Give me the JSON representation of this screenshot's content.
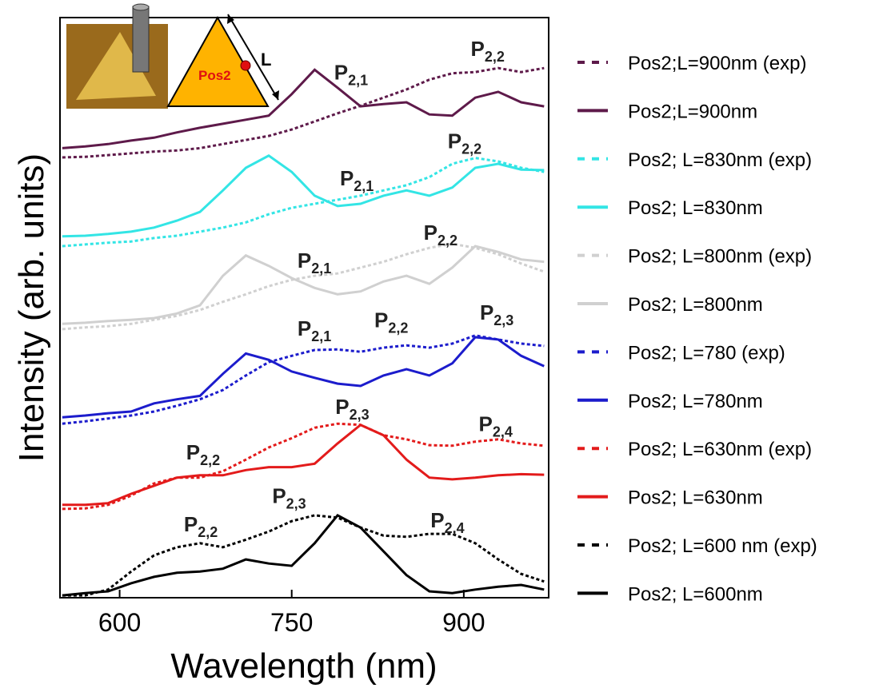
{
  "chart_data": {
    "type": "line",
    "x_label": "Wavelength (nm)",
    "y_label": "Intensity (arb. units)",
    "x": [
      550,
      570,
      590,
      610,
      630,
      650,
      670,
      690,
      710,
      730,
      750,
      770,
      790,
      810,
      830,
      850,
      870,
      890,
      910,
      930,
      950,
      970
    ],
    "xlim": [
      548,
      974
    ],
    "xticks": [
      600,
      750,
      900
    ],
    "ylim": [
      0,
      100
    ],
    "legend": "right",
    "series": [
      {
        "name": "Pos2;L=900nm (exp)",
        "color": "#5e1a4a",
        "dashed": true,
        "values": [
          75.9,
          76.0,
          76.3,
          76.6,
          76.9,
          77.1,
          77.5,
          78.2,
          78.9,
          79.6,
          80.7,
          82.1,
          83.5,
          84.8,
          86.2,
          87.6,
          89.3,
          90.4,
          90.6,
          91.3,
          90.6,
          91.3
        ]
      },
      {
        "name": "Pos2;L=900nm",
        "color": "#5e1a4a",
        "dashed": false,
        "values": [
          77.5,
          77.8,
          78.2,
          78.8,
          79.3,
          80.2,
          81.0,
          81.7,
          82.4,
          83.1,
          86.8,
          91.0,
          87.9,
          84.7,
          85.1,
          85.4,
          83.3,
          83.1,
          86.2,
          87.2,
          85.4,
          84.7
        ]
      },
      {
        "name": "Pos2; L=830nm (exp)",
        "color": "#33e5e5",
        "dashed": true,
        "values": [
          60.6,
          60.9,
          61.2,
          61.4,
          62.0,
          62.4,
          63.1,
          63.8,
          64.7,
          66.1,
          67.2,
          67.9,
          68.6,
          69.3,
          70.2,
          71.1,
          72.5,
          74.8,
          75.8,
          75.2,
          74.1,
          73.4
        ]
      },
      {
        "name": "Pos2; L=830nm",
        "color": "#33e5e5",
        "dashed": false,
        "values": [
          62.3,
          62.4,
          62.7,
          63.1,
          63.8,
          65.0,
          66.5,
          70.2,
          74.1,
          76.2,
          73.4,
          69.3,
          67.5,
          67.9,
          69.3,
          70.2,
          69.3,
          70.7,
          74.1,
          74.8,
          73.8,
          73.7
        ]
      },
      {
        "name": "Pos2; L=800nm (exp)",
        "color": "#d0d0d0",
        "dashed": true,
        "values": [
          46.3,
          46.6,
          46.8,
          47.2,
          47.9,
          48.6,
          49.6,
          51.0,
          52.3,
          53.7,
          54.8,
          55.5,
          55.9,
          56.9,
          57.9,
          59.2,
          60.3,
          61.0,
          60.3,
          59.2,
          57.6,
          56.2
        ]
      },
      {
        "name": "Pos2; L=800nm",
        "color": "#d0d0d0",
        "dashed": false,
        "values": [
          47.2,
          47.4,
          47.7,
          47.9,
          48.2,
          49.0,
          50.4,
          55.5,
          59.0,
          57.2,
          55.1,
          53.4,
          52.3,
          52.8,
          54.5,
          55.5,
          54.1,
          56.9,
          60.6,
          59.6,
          58.3,
          57.9
        ]
      },
      {
        "name": "Pos2; L=780 (exp)",
        "color": "#1c1ccc",
        "dashed": true,
        "values": [
          30.0,
          30.4,
          30.9,
          31.4,
          32.1,
          33.1,
          34.2,
          35.8,
          38.3,
          40.6,
          41.7,
          42.7,
          42.8,
          42.4,
          43.1,
          43.5,
          43.1,
          43.8,
          45.2,
          44.5,
          43.8,
          43.4
        ]
      },
      {
        "name": "Pos2; L=780nm",
        "color": "#1c1ccc",
        "dashed": false,
        "values": [
          31.1,
          31.4,
          31.8,
          32.1,
          33.5,
          34.2,
          34.8,
          38.6,
          42.1,
          41.0,
          39.0,
          37.9,
          36.9,
          36.5,
          38.3,
          39.4,
          38.3,
          40.4,
          44.9,
          44.5,
          41.7,
          39.9
        ]
      },
      {
        "name": "Pos2; L=630nm (exp)",
        "color": "#e31b1b",
        "dashed": true,
        "values": [
          15.3,
          15.4,
          16.0,
          17.6,
          19.7,
          20.7,
          20.7,
          21.8,
          23.8,
          25.9,
          27.5,
          29.3,
          30.0,
          29.8,
          28.0,
          27.3,
          26.3,
          26.2,
          26.9,
          27.3,
          26.6,
          26.2
        ]
      },
      {
        "name": "Pos2; L=630nm",
        "color": "#e31b1b",
        "dashed": false,
        "values": [
          16.0,
          16.0,
          16.3,
          17.9,
          19.3,
          20.7,
          21.1,
          21.1,
          22.0,
          22.5,
          22.5,
          23.1,
          26.6,
          29.8,
          28.0,
          23.8,
          20.7,
          20.4,
          20.7,
          21.1,
          21.3,
          21.2
        ]
      },
      {
        "name": "Pos2; L=600 nm (exp)",
        "color": "#000000",
        "dashed": true,
        "values": [
          0.4,
          0.4,
          1.4,
          4.5,
          7.3,
          8.7,
          9.4,
          8.7,
          10.0,
          11.4,
          13.2,
          14.2,
          13.8,
          12.1,
          10.7,
          10.5,
          11.0,
          11.0,
          9.4,
          6.6,
          4.1,
          2.8
        ]
      },
      {
        "name": "Pos2; L=600nm",
        "color": "#000000",
        "dashed": false,
        "values": [
          0.4,
          0.8,
          1.1,
          2.5,
          3.6,
          4.3,
          4.5,
          5.0,
          6.6,
          5.9,
          5.5,
          9.4,
          14.2,
          12.1,
          8.0,
          3.9,
          1.1,
          0.8,
          1.4,
          1.9,
          2.2,
          1.4
        ]
      }
    ],
    "annotations": [
      {
        "text": "P",
        "sub": "2,1",
        "x": 787,
        "y": 89.3
      },
      {
        "text": "P",
        "sub": "2,2",
        "x": 906,
        "y": 93.4
      },
      {
        "text": "P",
        "sub": "2,2",
        "x": 886,
        "y": 77.5
      },
      {
        "text": "P",
        "sub": "2,1",
        "x": 792,
        "y": 71.1
      },
      {
        "text": "P",
        "sub": "2,2",
        "x": 865,
        "y": 61.7
      },
      {
        "text": "P",
        "sub": "2,1",
        "x": 755,
        "y": 56.9
      },
      {
        "text": "P",
        "sub": "2,1",
        "x": 755,
        "y": 45.2
      },
      {
        "text": "P",
        "sub": "2,2",
        "x": 822,
        "y": 46.6
      },
      {
        "text": "P",
        "sub": "2,3",
        "x": 914,
        "y": 47.9
      },
      {
        "text": "P",
        "sub": "2,3",
        "x": 788,
        "y": 31.7
      },
      {
        "text": "P",
        "sub": "2,4",
        "x": 913,
        "y": 28.7
      },
      {
        "text": "P",
        "sub": "2,2",
        "x": 658,
        "y": 23.8
      },
      {
        "text": "P",
        "sub": "2,2",
        "x": 656,
        "y": 11.4
      },
      {
        "text": "P",
        "sub": "2,3",
        "x": 733,
        "y": 16.3
      },
      {
        "text": "P",
        "sub": "2,4",
        "x": 871,
        "y": 12.1
      }
    ]
  },
  "inset": {
    "position_label": "Pos2",
    "length_label": "L"
  }
}
